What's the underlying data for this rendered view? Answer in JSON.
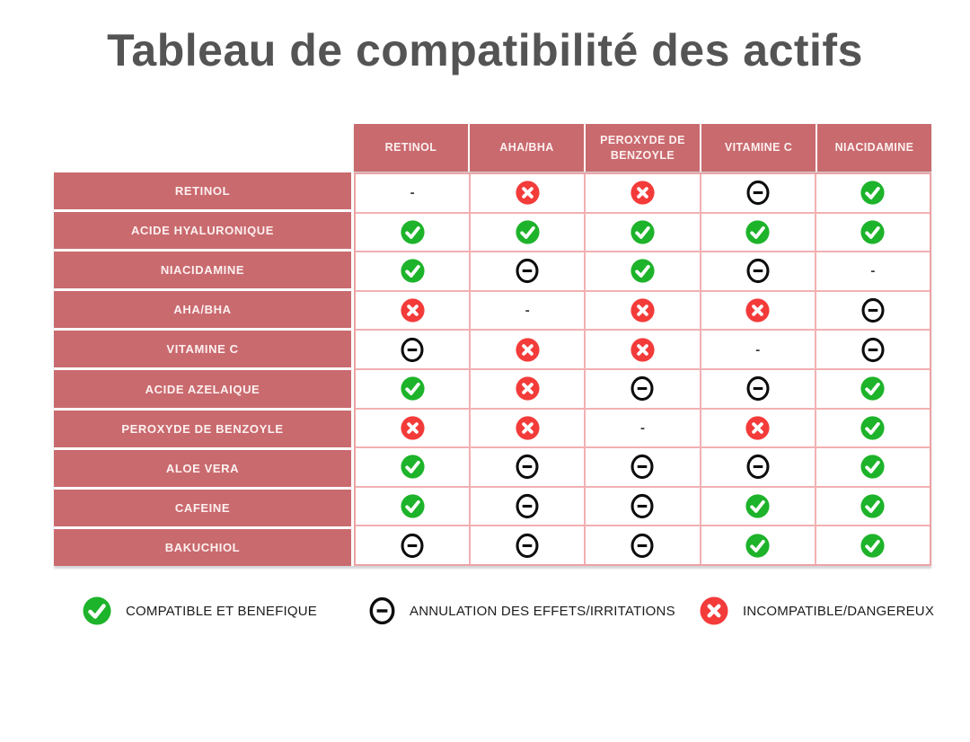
{
  "title": "Tableau de compatibilité des actifs",
  "colors": {
    "salmon": "#c96a6e",
    "compatible_green": "#1db32a",
    "incompatible_red": "#f33b3a",
    "neutral_black": "#0d0d0d",
    "grid_pink": "#f2b0b2",
    "title_gray": "#545454"
  },
  "chart_data": {
    "type": "table",
    "title": "Tableau de compatibilité des actifs",
    "columns": [
      "RETINOL",
      "AHA/BHA",
      "PEROXYDE DE BENZOYLE",
      "VITAMINE C",
      "NIACIDAMINE"
    ],
    "rows": [
      {
        "label": "RETINOL",
        "values": [
          "dash",
          "incompatible",
          "incompatible",
          "neutral",
          "compatible"
        ]
      },
      {
        "label": "ACIDE HYALURONIQUE",
        "values": [
          "compatible",
          "compatible",
          "compatible",
          "compatible",
          "compatible"
        ]
      },
      {
        "label": "NIACIDAMINE",
        "values": [
          "compatible",
          "neutral",
          "compatible",
          "neutral",
          "dash"
        ]
      },
      {
        "label": "AHA/BHA",
        "values": [
          "incompatible",
          "dash",
          "incompatible",
          "incompatible",
          "neutral"
        ]
      },
      {
        "label": "VITAMINE C",
        "values": [
          "neutral",
          "incompatible",
          "incompatible",
          "dash",
          "neutral"
        ]
      },
      {
        "label": "ACIDE AZELAIQUE",
        "values": [
          "compatible",
          "incompatible",
          "neutral",
          "neutral",
          "compatible"
        ]
      },
      {
        "label": "PEROXYDE DE BENZOYLE",
        "values": [
          "incompatible",
          "incompatible",
          "dash",
          "incompatible",
          "compatible"
        ]
      },
      {
        "label": "ALOE VERA",
        "values": [
          "compatible",
          "neutral",
          "neutral",
          "neutral",
          "compatible"
        ]
      },
      {
        "label": "CAFEINE",
        "values": [
          "compatible",
          "neutral",
          "neutral",
          "compatible",
          "compatible"
        ]
      },
      {
        "label": "BAKUCHIOL",
        "values": [
          "neutral",
          "neutral",
          "neutral",
          "compatible",
          "compatible"
        ]
      }
    ],
    "dash_symbol": "-",
    "legend": [
      {
        "icon": "compatible",
        "label": "COMPATIBLE ET BENEFIQUE"
      },
      {
        "icon": "neutral",
        "label": "ANNULATION DES EFFETS/IRRITATIONS"
      },
      {
        "icon": "incompatible",
        "label": "INCOMPATIBLE/DANGEREUX"
      }
    ]
  }
}
